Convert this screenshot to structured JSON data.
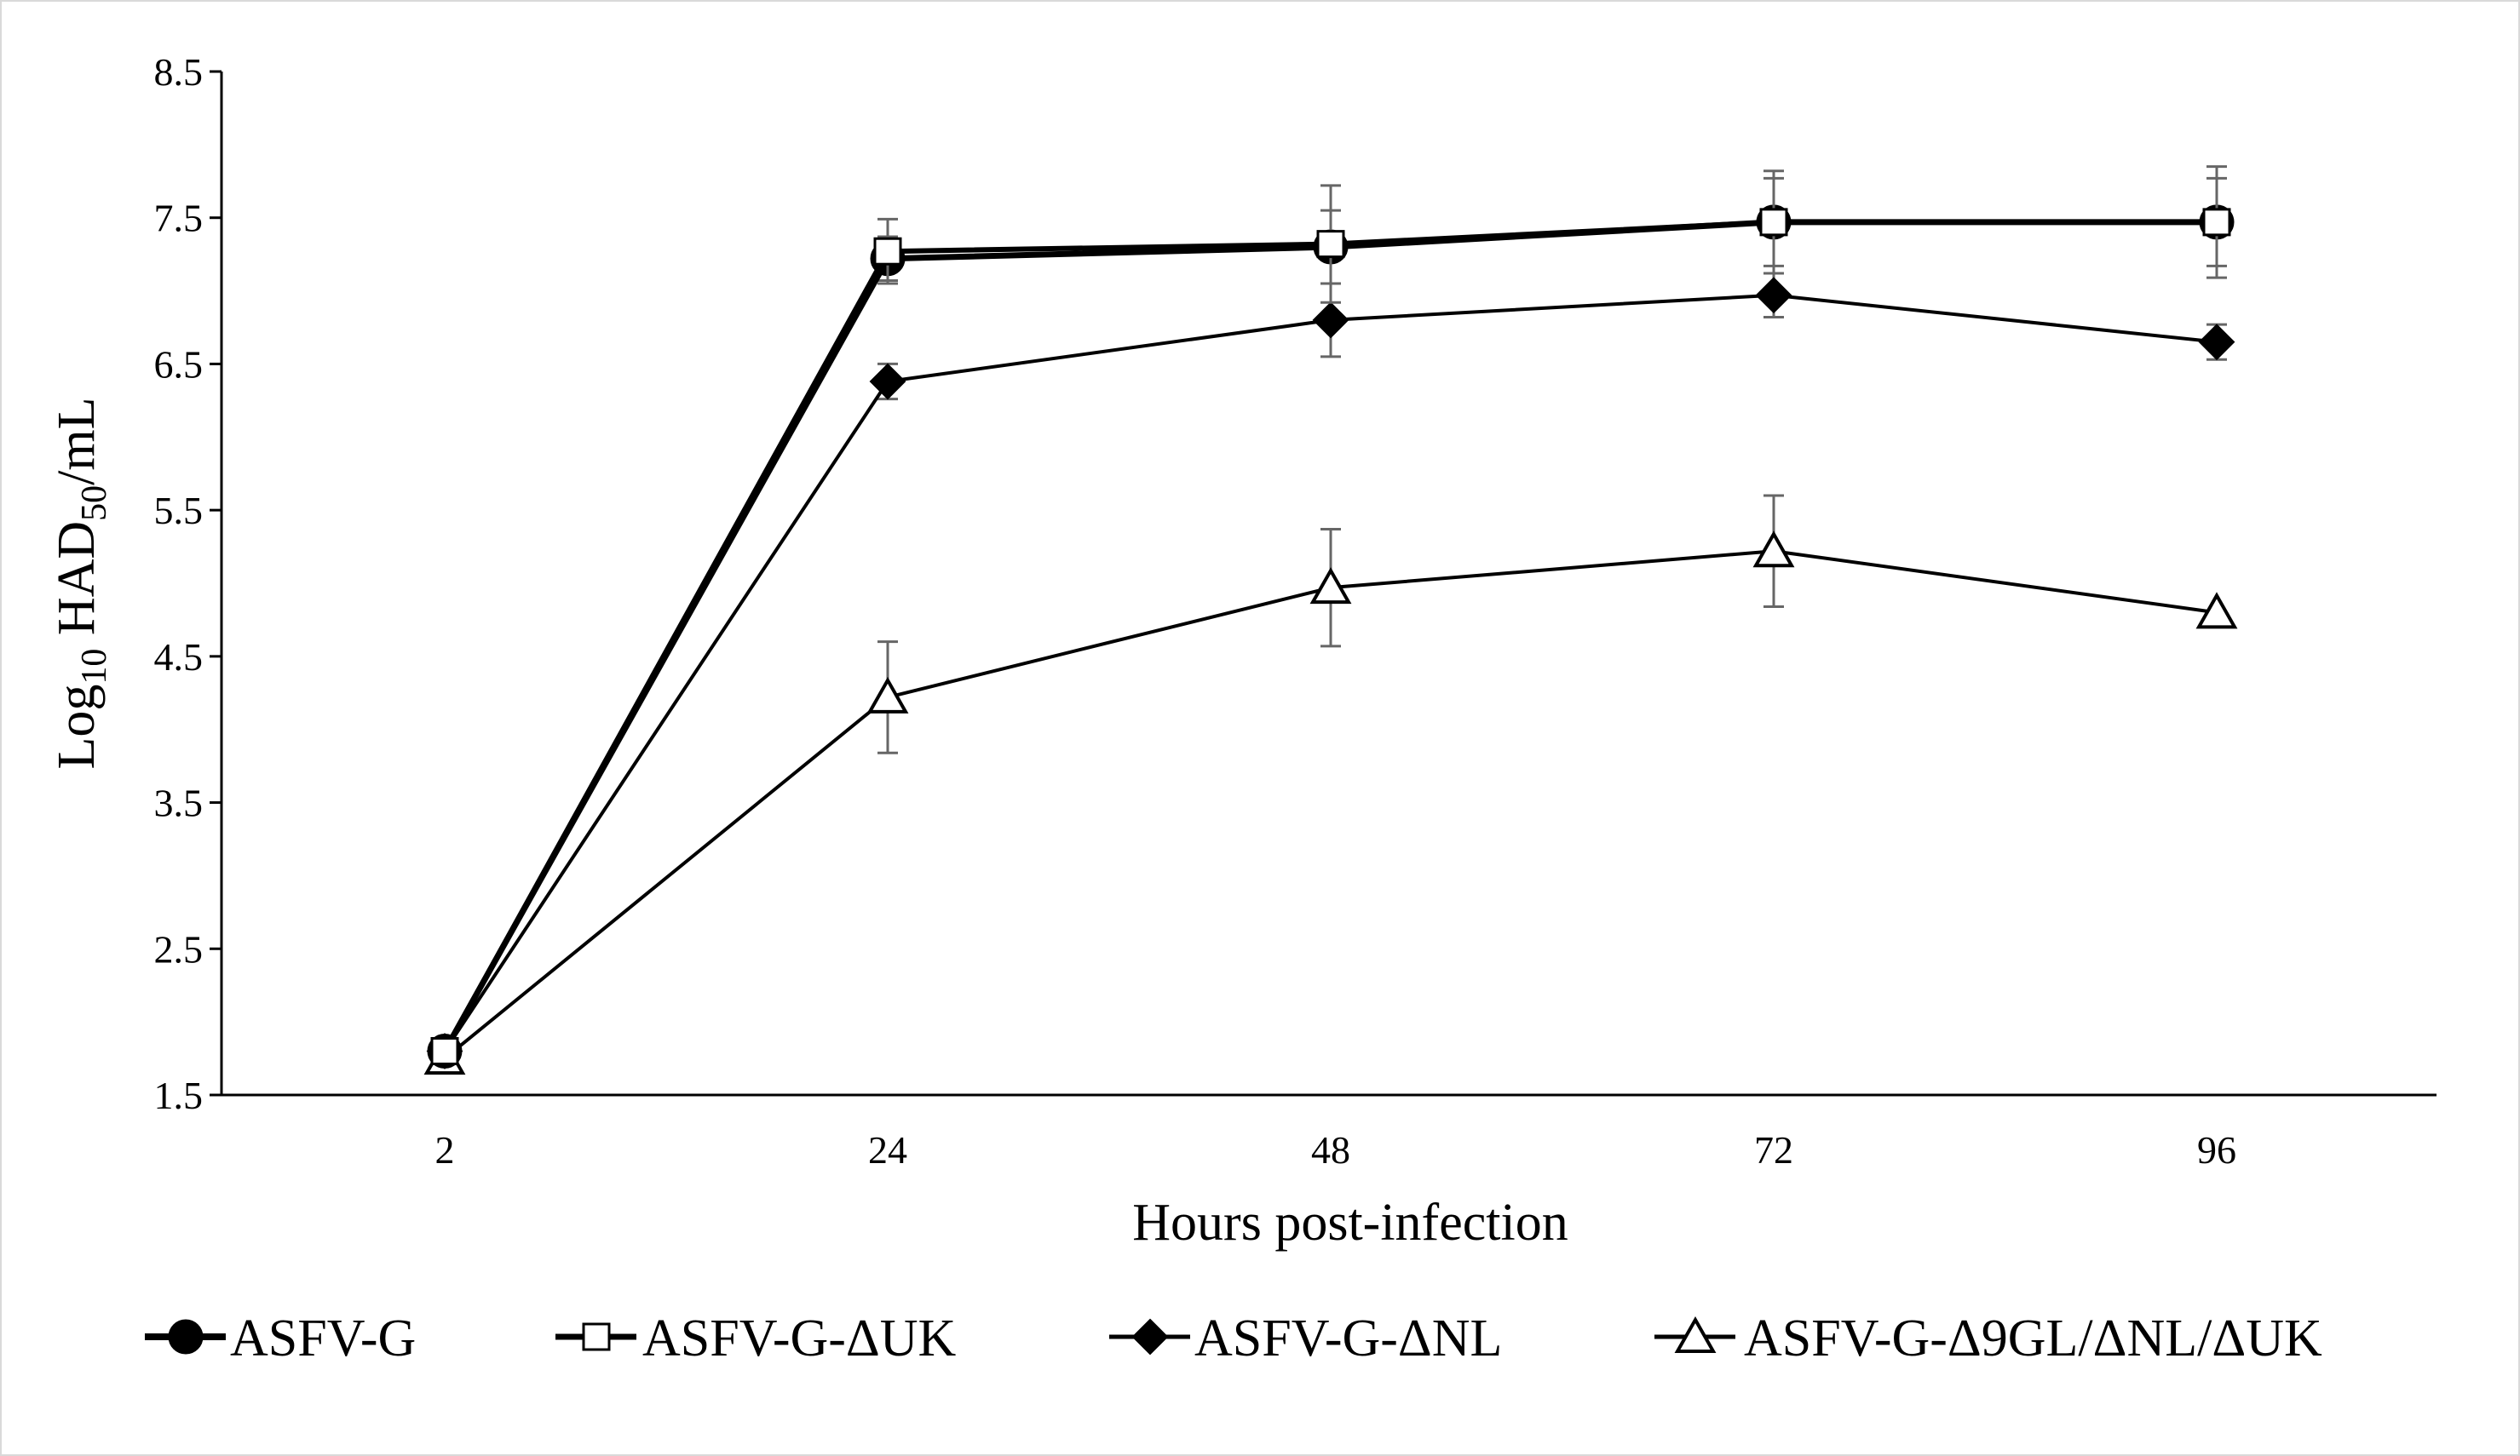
{
  "chart_data": {
    "type": "line",
    "title": "",
    "xlabel": "Hours post-infection",
    "ylabel_main": "Log",
    "ylabel_sub": "10",
    "ylabel_mid": " HAD",
    "ylabel_sub2": "50",
    "ylabel_end": "/mL",
    "categories": [
      "2",
      "24",
      "48",
      "72",
      "96"
    ],
    "ylim": [
      1.5,
      8.5
    ],
    "yticks": [
      "1.5",
      "2.5",
      "3.5",
      "4.5",
      "5.5",
      "6.5",
      "7.5",
      "8.5"
    ],
    "grid": false,
    "legend_position": "bottom",
    "series": [
      {
        "name": "ASFV-G",
        "marker": "circle-filled",
        "values": [
          1.8,
          7.22,
          7.3,
          7.47,
          7.47
        ],
        "errors": [
          0,
          0.15,
          0.25,
          0.3,
          0.38
        ],
        "line_width": 7
      },
      {
        "name": "ASFV-G-ΔUK",
        "marker": "square-open",
        "values": [
          1.8,
          7.27,
          7.32,
          7.47,
          7.47
        ],
        "errors": [
          0,
          0.22,
          0.4,
          0.35,
          0.3
        ],
        "line_width": 6
      },
      {
        "name": "ASFV-G-ΔNL",
        "marker": "diamond-filled",
        "values": [
          1.8,
          6.38,
          6.8,
          6.97,
          6.65
        ],
        "errors": [
          0,
          0.12,
          0.25,
          0.15,
          0.12
        ],
        "line_width": 4
      },
      {
        "name": "ASFV-G-Δ9GL/ΔNL/ΔUK",
        "marker": "triangle-open",
        "values": [
          1.75,
          4.22,
          4.97,
          5.22,
          4.8
        ],
        "errors": [
          0,
          0.38,
          0.4,
          0.38,
          0
        ],
        "line_width": 4
      }
    ],
    "colors": {
      "line": "#000000",
      "error_bar": "#666666",
      "axis": "#000000"
    }
  }
}
